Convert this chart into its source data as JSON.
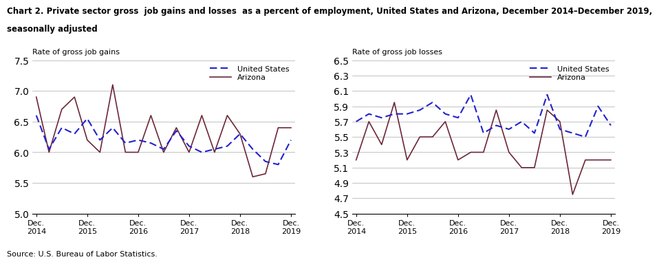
{
  "title_line1": "Chart 2. Private sector gross  job gains and losses  as a percent of employment, United States and Arizona, December 2014–December 2019,",
  "title_line2": "seasonally adjusted",
  "left_chart": {
    "ylabel": "Rate of gross job gains",
    "ylim": [
      5.0,
      7.5
    ],
    "yticks": [
      5.0,
      5.5,
      6.0,
      6.5,
      7.0,
      7.5
    ],
    "us_data": [
      6.6,
      6.05,
      6.4,
      6.3,
      6.55,
      6.2,
      6.4,
      6.15,
      6.2,
      6.15,
      6.05,
      6.35,
      6.1,
      6.0,
      6.05,
      6.1,
      6.3,
      6.05,
      5.85,
      5.8,
      6.2
    ],
    "az_data": [
      6.9,
      6.0,
      6.7,
      6.9,
      6.2,
      6.0,
      7.1,
      6.0,
      6.0,
      6.6,
      6.0,
      6.4,
      6.0,
      6.6,
      6.0,
      6.6,
      6.3,
      5.6,
      5.65,
      6.4,
      6.4
    ]
  },
  "right_chart": {
    "ylabel": "Rate of gross job losses",
    "ylim": [
      4.5,
      6.5
    ],
    "yticks": [
      4.5,
      4.7,
      4.9,
      5.1,
      5.3,
      5.5,
      5.7,
      5.9,
      6.1,
      6.3,
      6.5
    ],
    "us_data": [
      5.7,
      5.8,
      5.75,
      5.8,
      5.8,
      5.85,
      5.95,
      5.8,
      5.75,
      6.05,
      5.55,
      5.65,
      5.6,
      5.7,
      5.55,
      6.05,
      5.6,
      5.55,
      5.5,
      5.9,
      5.65
    ],
    "az_data": [
      5.2,
      5.7,
      5.4,
      5.95,
      5.2,
      5.5,
      5.5,
      5.7,
      5.2,
      5.3,
      5.3,
      5.85,
      5.3,
      5.1,
      5.1,
      5.85,
      5.7,
      4.75,
      5.2,
      5.2,
      5.2
    ]
  },
  "x_labels": [
    "Dec.\n2014",
    "Dec.\n2015",
    "Dec.\n2016",
    "Dec.\n2017",
    "Dec.\n2018",
    "Dec.\n2019"
  ],
  "us_color": "#2222CC",
  "az_color": "#6B2737",
  "source": "Source: U.S. Bureau of Labor Statistics.",
  "n_points": 21,
  "tick_positions": [
    0,
    4,
    8,
    12,
    16,
    20
  ]
}
